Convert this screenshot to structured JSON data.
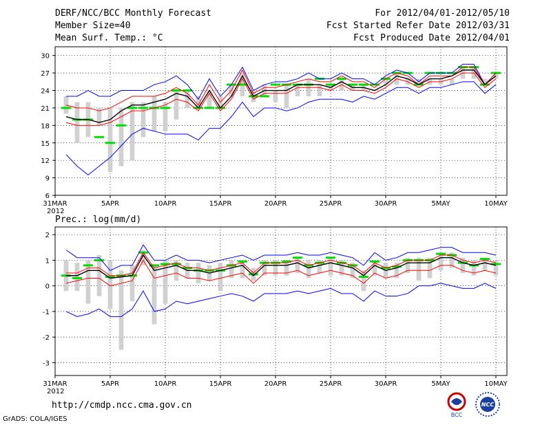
{
  "header": {
    "title": "DERF/NCC/BCC Monthly Forecast",
    "member_size": "Member Size=40",
    "variable": "Mean Surf. Temp.: °C",
    "forecast_for": "For 2012/04/01-2012/05/10",
    "started_refer": "Fcst Started Refer Date 2012/03/31",
    "produced": "Fcst Produced Date 2012/04/01"
  },
  "footer": {
    "url": "http://cmdp.ncc.cma.gov.cn",
    "grads": "GrADS: COLA/IGES",
    "logo_left_text": "BCC",
    "logo_right_text": "NCC"
  },
  "colors": {
    "ensemble_mean": "#000000",
    "envelope": "#0000ff",
    "spread": "#ff0000",
    "box": "#d0d0d0",
    "climatology": "#00dd00",
    "grid": "#000000"
  },
  "chart_data": [
    {
      "type": "line",
      "title": "Mean Surf. Temp.: °C",
      "xlabel": "",
      "ylabel": "",
      "x_ticks": [
        0,
        5,
        10,
        15,
        20,
        25,
        30,
        35,
        40
      ],
      "x_tick_labels": [
        "31MAR",
        "5APR",
        "10APR",
        "15APR",
        "20APR",
        "25APR",
        "30APR",
        "5MAY",
        "10MAY"
      ],
      "x_sub_label": "2012",
      "ylim": [
        6,
        31.5
      ],
      "y_ticks": [
        6,
        9,
        12,
        15,
        18,
        21,
        24,
        27,
        30
      ],
      "x": [
        1,
        2,
        3,
        4,
        5,
        6,
        7,
        8,
        9,
        10,
        11,
        12,
        13,
        14,
        15,
        16,
        17,
        18,
        19,
        20,
        21,
        22,
        23,
        24,
        25,
        26,
        27,
        28,
        29,
        30,
        31,
        32,
        33,
        34,
        35,
        36,
        37,
        38,
        39,
        40
      ],
      "series": [
        {
          "name": "envelope_max",
          "color": "#0000ff",
          "values": [
            23,
            23,
            24,
            23,
            23,
            24,
            24,
            24,
            25,
            25.5,
            26.5,
            25,
            22.5,
            26,
            23,
            25,
            28,
            24,
            25,
            25.5,
            25.5,
            26,
            27,
            26,
            26,
            27,
            26,
            26,
            25,
            26.5,
            27.5,
            27,
            25.5,
            27,
            27,
            27,
            28.5,
            28.5,
            25,
            27
          ]
        },
        {
          "name": "upper_spread",
          "color": "#ff0000",
          "values": [
            21.5,
            21,
            21,
            20.5,
            21,
            22,
            23,
            23,
            23,
            23.5,
            24.5,
            23.5,
            21.5,
            25,
            22,
            24,
            27.5,
            23.5,
            24.5,
            24.5,
            25,
            25.5,
            26,
            25.5,
            25.5,
            26.5,
            25.5,
            25.5,
            24.5,
            26,
            27,
            26.5,
            25,
            26.5,
            26.5,
            26.5,
            28,
            28,
            25,
            27
          ]
        },
        {
          "name": "ensemble_mean",
          "color": "#000000",
          "values": [
            19.5,
            19,
            19,
            18.5,
            19,
            20.5,
            21.5,
            21.5,
            22,
            22.5,
            23.5,
            23,
            21,
            24,
            21,
            23,
            26.5,
            23,
            24,
            24,
            24,
            25,
            25,
            25,
            24.5,
            25.5,
            24.5,
            24.5,
            24,
            25,
            26.5,
            26,
            25,
            26,
            26,
            26.5,
            27.5,
            27.5,
            25,
            26.5
          ]
        },
        {
          "name": "lower_spread",
          "color": "#ff0000",
          "values": [
            18.5,
            18,
            18,
            18,
            18.5,
            19.5,
            20.5,
            20.5,
            21,
            21.5,
            22.5,
            22,
            20.5,
            23.5,
            20.5,
            22.5,
            26,
            22.5,
            23.5,
            23.5,
            23.5,
            24.5,
            24.5,
            24.5,
            24,
            25,
            24,
            24,
            23.5,
            24.5,
            26,
            25.5,
            24.5,
            25.5,
            25.5,
            26,
            27,
            27,
            24.5,
            26
          ]
        },
        {
          "name": "envelope_min",
          "color": "#0000ff",
          "values": [
            13,
            11,
            9.5,
            11,
            12.5,
            14.5,
            16.5,
            17.5,
            17,
            16.5,
            16.5,
            16.5,
            15.5,
            17.5,
            17.5,
            19.5,
            22,
            19.5,
            21,
            21,
            20.5,
            21,
            22,
            22.5,
            22.5,
            22.5,
            22,
            23,
            22.5,
            23.5,
            24.5,
            24.5,
            23.5,
            24.5,
            24.5,
            25,
            25.5,
            25.5,
            23.5,
            25
          ]
        }
      ],
      "boxes": {
        "low": [
          20,
          15,
          16,
          18,
          10,
          11,
          12,
          16,
          17,
          17,
          19,
          21,
          21,
          21,
          21,
          23,
          23,
          22,
          23,
          22,
          21,
          23,
          23,
          23,
          24,
          24,
          24,
          24,
          24,
          25,
          25,
          25,
          25,
          25,
          25,
          25,
          26,
          26,
          25,
          26
        ],
        "high": [
          23,
          22,
          22,
          21,
          21,
          21,
          22,
          22,
          23,
          22,
          24,
          24,
          23,
          24,
          23,
          25,
          27,
          24,
          25,
          24,
          25,
          25,
          26,
          25,
          25,
          26,
          25,
          25,
          24,
          26,
          27,
          26,
          26,
          26,
          26,
          26,
          28,
          28,
          26,
          27
        ],
        "climatology": [
          21,
          19,
          19,
          16,
          15,
          18,
          21,
          21,
          21,
          21,
          24,
          24,
          21,
          21,
          21,
          25,
          25,
          23,
          23,
          25,
          25,
          25,
          25,
          26,
          25,
          26,
          25,
          25,
          25,
          26,
          27,
          27,
          25,
          27,
          27,
          27,
          28,
          28,
          25,
          27
        ]
      }
    },
    {
      "type": "line",
      "title": "Prec.: log(mm/d)",
      "xlabel": "",
      "ylabel": "",
      "x_ticks": [
        0,
        5,
        10,
        15,
        20,
        25,
        30,
        35,
        40
      ],
      "x_tick_labels": [
        "31MAR",
        "5APR",
        "10APR",
        "15APR",
        "20APR",
        "25APR",
        "30APR",
        "5MAY",
        "10MAY"
      ],
      "x_sub_label": "2012",
      "ylim": [
        -3.5,
        2.3
      ],
      "y_ticks": [
        -3,
        -2,
        -1,
        0,
        1,
        2
      ],
      "x": [
        1,
        2,
        3,
        4,
        5,
        6,
        7,
        8,
        9,
        10,
        11,
        12,
        13,
        14,
        15,
        16,
        17,
        18,
        19,
        20,
        21,
        22,
        23,
        24,
        25,
        26,
        27,
        28,
        29,
        30,
        31,
        32,
        33,
        34,
        35,
        36,
        37,
        38,
        39,
        40
      ],
      "series": [
        {
          "name": "envelope_max",
          "color": "#0000ff",
          "values": [
            1.4,
            1.1,
            1.1,
            1.1,
            0.6,
            0.8,
            0.8,
            1.6,
            1.0,
            1.0,
            1.2,
            1.0,
            1.0,
            0.9,
            1.0,
            1.1,
            1.2,
            1.0,
            1.2,
            1.2,
            1.2,
            1.3,
            1.2,
            1.2,
            1.3,
            1.2,
            1.1,
            0.8,
            1.3,
            1.0,
            1.1,
            1.3,
            1.3,
            1.4,
            1.5,
            1.5,
            1.3,
            1.3,
            1.3,
            1.2
          ]
        },
        {
          "name": "upper_spread",
          "color": "#ff0000",
          "values": [
            0.5,
            0.5,
            0.7,
            0.7,
            0.4,
            0.4,
            0.5,
            1.3,
            0.7,
            0.8,
            0.9,
            0.7,
            0.7,
            0.6,
            0.7,
            0.8,
            0.9,
            0.5,
            0.9,
            0.9,
            0.9,
            1.0,
            0.8,
            0.9,
            1.0,
            0.9,
            0.8,
            0.5,
            0.9,
            0.7,
            0.8,
            1.0,
            1.0,
            1.0,
            1.2,
            1.2,
            1.0,
            0.9,
            1.0,
            0.9
          ]
        },
        {
          "name": "ensemble_mean",
          "color": "#000000",
          "values": [
            0.4,
            0.4,
            0.6,
            0.6,
            0.3,
            0.35,
            0.4,
            1.2,
            0.6,
            0.7,
            0.8,
            0.6,
            0.6,
            0.5,
            0.6,
            0.7,
            0.8,
            0.4,
            0.8,
            0.8,
            0.8,
            0.9,
            0.7,
            0.8,
            0.9,
            0.8,
            0.7,
            0.4,
            0.8,
            0.6,
            0.7,
            0.9,
            0.9,
            0.9,
            1.1,
            1.1,
            0.9,
            0.8,
            0.9,
            0.8
          ]
        },
        {
          "name": "lower_spread",
          "color": "#ff0000",
          "values": [
            0.1,
            0.2,
            0.3,
            0.3,
            0.0,
            0.1,
            0.2,
            1.0,
            0.3,
            0.4,
            0.5,
            0.3,
            0.3,
            0.2,
            0.3,
            0.4,
            0.5,
            0.1,
            0.5,
            0.5,
            0.5,
            0.6,
            0.4,
            0.5,
            0.6,
            0.5,
            0.4,
            0.1,
            0.5,
            0.3,
            0.4,
            0.6,
            0.6,
            0.6,
            0.8,
            0.8,
            0.6,
            0.5,
            0.6,
            0.5
          ]
        },
        {
          "name": "envelope_min",
          "color": "#0000ff",
          "values": [
            -1.0,
            -1.2,
            -1.1,
            -0.9,
            -1.2,
            -1.2,
            -0.9,
            -0.2,
            -1.0,
            -0.9,
            -0.6,
            -0.7,
            -0.6,
            -0.5,
            -0.4,
            -0.3,
            -0.4,
            -0.6,
            -0.3,
            -0.3,
            -0.3,
            -0.2,
            -0.3,
            -0.2,
            -0.1,
            -0.3,
            -0.3,
            -0.6,
            -0.2,
            -0.4,
            -0.4,
            -0.3,
            0.0,
            0.0,
            0.1,
            0.0,
            -0.1,
            -0.1,
            0.1,
            -0.1
          ]
        }
      ],
      "boxes": {
        "low": [
          -0.2,
          -0.2,
          -0.7,
          -0.4,
          -0.9,
          -2.5,
          -0.6,
          0.8,
          -1.5,
          -0.7,
          0.2,
          0.3,
          0.1,
          0.2,
          -0.2,
          0.3,
          0.3,
          0.2,
          0.4,
          0.4,
          0.4,
          0.5,
          0.3,
          0.5,
          0.4,
          0.4,
          0.3,
          -0.2,
          0.4,
          0.3,
          0.3,
          0.5,
          0.2,
          0.3,
          0.6,
          0.7,
          0.5,
          0.4,
          0.6,
          0.4
        ],
        "high": [
          1.0,
          0.9,
          1.0,
          1.2,
          1.0,
          0.6,
          0.8,
          1.4,
          0.8,
          1.0,
          1.0,
          0.9,
          0.9,
          0.8,
          0.9,
          1.0,
          1.0,
          0.7,
          1.0,
          1.0,
          1.0,
          1.1,
          1.0,
          1.0,
          1.1,
          1.0,
          0.9,
          0.6,
          1.0,
          0.9,
          0.9,
          1.1,
          1.1,
          1.1,
          1.3,
          1.3,
          1.1,
          1.0,
          1.1,
          1.0
        ],
        "climatology": [
          0.4,
          0.3,
          0.8,
          1.0,
          0.35,
          0.4,
          0.4,
          1.3,
          0.8,
          0.85,
          0.85,
          0.7,
          0.6,
          0.6,
          0.6,
          0.8,
          0.95,
          0.45,
          0.9,
          0.9,
          0.95,
          1.1,
          0.8,
          0.9,
          1.1,
          0.9,
          0.8,
          0.35,
          0.95,
          0.7,
          0.75,
          1.0,
          1.0,
          1.0,
          1.25,
          1.2,
          0.9,
          0.8,
          1.05,
          0.85
        ]
      }
    }
  ]
}
